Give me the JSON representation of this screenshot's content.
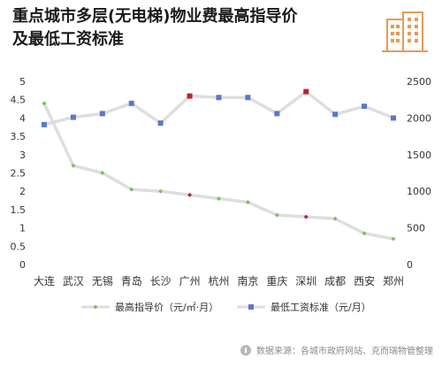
{
  "header": {
    "title_line1": "重点城市多层(无电梯)物业费最高指导价",
    "title_line2": "及最低工资标准"
  },
  "source": "数据来源：各城市政府网站、克而瑞物管整理",
  "colors": {
    "line_gray": "#dedede",
    "marker_green": "#7cbf5f",
    "marker_blue": "#5a78c8",
    "marker_red": "#b5262f",
    "axis_text": "#333333",
    "logo_orange": "#e59a55"
  },
  "chart_data": {
    "type": "line",
    "categories": [
      "大连",
      "武汉",
      "无锡",
      "青岛",
      "长沙",
      "广州",
      "杭州",
      "南京",
      "重庆",
      "深圳",
      "成都",
      "西安",
      "郑州"
    ],
    "y_left": {
      "ylim": [
        0,
        5
      ],
      "ticks": [
        "0",
        "0.5",
        "1",
        "1.5",
        "2",
        "2.5",
        "3",
        "3.5",
        "4",
        "4.5",
        "5"
      ]
    },
    "y_right": {
      "ylim": [
        0,
        2500
      ],
      "ticks": [
        "0",
        "500",
        "1000",
        "1500",
        "2000",
        "2500"
      ]
    },
    "series": [
      {
        "name": "最高指导价（元/㎡·月）",
        "axis": "left",
        "values": [
          4.4,
          2.7,
          2.5,
          2.05,
          2.0,
          1.9,
          1.8,
          1.7,
          1.35,
          1.3,
          1.25,
          0.85,
          0.7
        ],
        "highlight": [
          5,
          9
        ]
      },
      {
        "name": "最低工资标准（元/月）",
        "axis": "right",
        "values": [
          1910,
          2010,
          2060,
          2200,
          1930,
          2300,
          2280,
          2280,
          2060,
          2360,
          2050,
          2160,
          2000
        ],
        "highlight": [
          5,
          9
        ]
      }
    ]
  }
}
